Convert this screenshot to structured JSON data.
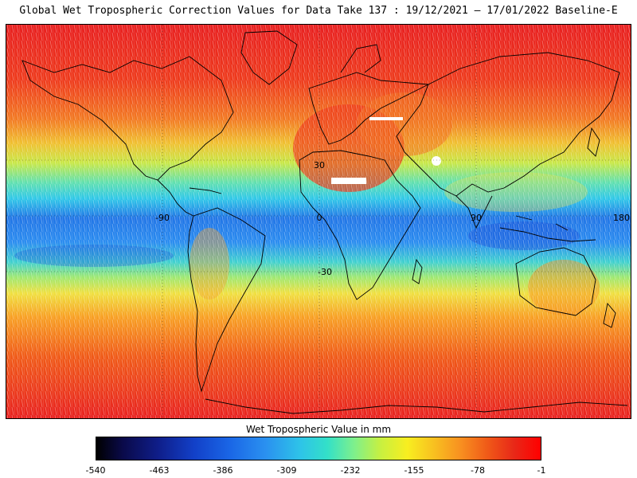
{
  "title": "Global Wet Tropospheric Correction Values for Data Take 137 : 19/12/2021 – 17/01/2022 Baseline-E",
  "map": {
    "lon_labels": [
      "-90",
      "0",
      "90",
      "180"
    ],
    "lat_labels": [
      "30",
      "-30"
    ],
    "colors": {
      "deep_blue": "#1a50d8",
      "blue": "#2a8cf0",
      "cyan": "#30d8e0",
      "green": "#70e890",
      "yellow": "#f0e040",
      "orange": "#f89020",
      "orange_red": "#f05a18",
      "red": "#e82020",
      "coast": "#000000",
      "no_data": "#ffffff"
    }
  },
  "colorbar": {
    "title": "Wet Tropospheric Value in mm",
    "ticks": [
      "-540",
      "-463",
      "-386",
      "-309",
      "-232",
      "-155",
      "-78",
      "-1"
    ],
    "range": [
      -540,
      -1
    ]
  }
}
